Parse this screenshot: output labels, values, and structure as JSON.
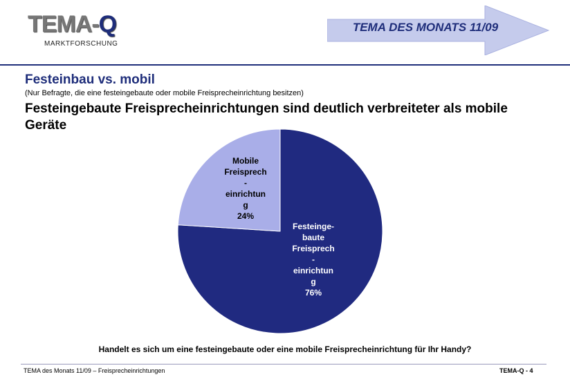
{
  "logo": {
    "main": "TEMA",
    "dash": "-",
    "q": "Q",
    "sub": "MARKTFORSCHUNG"
  },
  "banner": {
    "text": "TEMA DES MONATS 11/09"
  },
  "slide": {
    "subtitle": "Festeinbau vs. mobil",
    "note": "(Nur Befragte, die eine festeingebaute oder mobile Freisprecheinrichtung besitzen)",
    "headline": "Festeingebaute Freisprecheinrichtungen sind deutlich verbreiteter als mobile Geräte",
    "question": "Handelt es sich um eine festeingebaute oder eine mobile Freisprecheinrichtung für Ihr Handy?"
  },
  "footer": {
    "left": "TEMA des Monats 11/09 – Freisprecheinrichtungen",
    "right": "TEMA-Q - 4"
  },
  "chart_data": {
    "type": "pie",
    "slices": [
      {
        "label": "Festeinge-\nbaute\nFreisprech\n-\neinrichtun\ng",
        "value": 76,
        "value_label": "76%",
        "color": "#202a80"
      },
      {
        "label": "Mobile\nFreisprech\n-\neinrichtun\ng",
        "value": 24,
        "value_label": "24%",
        "color": "#a9aee8"
      }
    ]
  }
}
